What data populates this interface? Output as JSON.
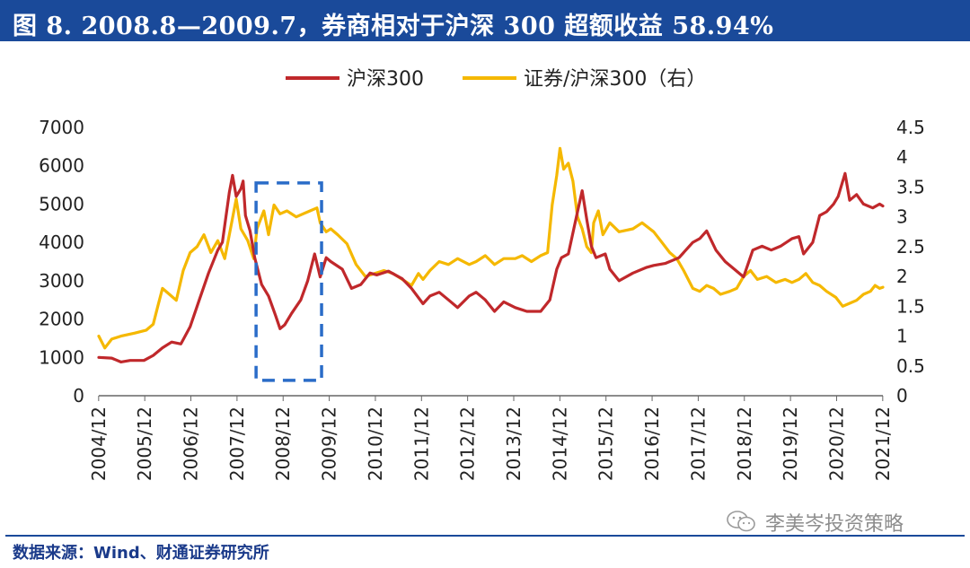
{
  "header": {
    "title": "图 8. 2008.8—2009.7，券商相对于沪深 300 超额收益 58.94%"
  },
  "footer": {
    "source": "数据来源：Wind、财通证券研究所",
    "watermark": "李美岑投资策略"
  },
  "chart_data": {
    "type": "line",
    "title": "图 8. 2008.8—2009.7，券商相对于沪深 300 超额收益 58.94%",
    "legend_position": "top",
    "x_labels": [
      "2004/12",
      "2005/12",
      "2006/12",
      "2007/12",
      "2008/12",
      "2009/12",
      "2010/12",
      "2011/12",
      "2012/12",
      "2013/12",
      "2014/12",
      "2015/12",
      "2016/12",
      "2017/12",
      "2018/12",
      "2019/12",
      "2020/12",
      "2021/12"
    ],
    "x_range": [
      2004.92,
      2021.92
    ],
    "y_left": {
      "min": 0,
      "max": 7000,
      "ticks": [
        "0",
        "1000",
        "2000",
        "3000",
        "4000",
        "5000",
        "6000",
        "7000"
      ]
    },
    "y_right": {
      "min": 0,
      "max": 4.5,
      "ticks": [
        "0",
        "0.5",
        "1",
        "1.5",
        "2",
        "2.5",
        "3",
        "3.5",
        "4",
        "4.5"
      ]
    },
    "highlight": {
      "label": "2008.8—2009.7",
      "x_start": 2008.33,
      "x_end": 2009.75,
      "y_low": 400,
      "y_high": 5550
    },
    "colors": {
      "hs300": "#c0282b",
      "ratio": "#f5b800",
      "highlight": "#2a6cc8",
      "title_bg": "#1a4a9a"
    },
    "series": [
      {
        "name": "沪深300",
        "axis": "left",
        "color": "#c0282b",
        "points": [
          [
            2004.92,
            1000
          ],
          [
            2005.2,
            980
          ],
          [
            2005.4,
            880
          ],
          [
            2005.6,
            920
          ],
          [
            2005.9,
            920
          ],
          [
            2006.1,
            1050
          ],
          [
            2006.3,
            1250
          ],
          [
            2006.5,
            1400
          ],
          [
            2006.7,
            1350
          ],
          [
            2006.9,
            1800
          ],
          [
            2007.1,
            2500
          ],
          [
            2007.3,
            3200
          ],
          [
            2007.5,
            3800
          ],
          [
            2007.6,
            4000
          ],
          [
            2007.75,
            5300
          ],
          [
            2007.82,
            5750
          ],
          [
            2007.9,
            5200
          ],
          [
            2008.0,
            5400
          ],
          [
            2008.05,
            5600
          ],
          [
            2008.1,
            4700
          ],
          [
            2008.2,
            4300
          ],
          [
            2008.3,
            3600
          ],
          [
            2008.45,
            2900
          ],
          [
            2008.6,
            2600
          ],
          [
            2008.75,
            2100
          ],
          [
            2008.85,
            1750
          ],
          [
            2008.95,
            1850
          ],
          [
            2009.1,
            2150
          ],
          [
            2009.3,
            2500
          ],
          [
            2009.45,
            3000
          ],
          [
            2009.6,
            3700
          ],
          [
            2009.72,
            3100
          ],
          [
            2009.85,
            3600
          ],
          [
            2009.95,
            3500
          ],
          [
            2010.2,
            3300
          ],
          [
            2010.4,
            2800
          ],
          [
            2010.6,
            2900
          ],
          [
            2010.8,
            3200
          ],
          [
            2010.95,
            3150
          ],
          [
            2011.2,
            3250
          ],
          [
            2011.5,
            3050
          ],
          [
            2011.7,
            2800
          ],
          [
            2011.95,
            2400
          ],
          [
            2012.1,
            2600
          ],
          [
            2012.3,
            2700
          ],
          [
            2012.5,
            2500
          ],
          [
            2012.7,
            2300
          ],
          [
            2012.95,
            2600
          ],
          [
            2013.1,
            2700
          ],
          [
            2013.3,
            2500
          ],
          [
            2013.5,
            2200
          ],
          [
            2013.7,
            2450
          ],
          [
            2013.95,
            2300
          ],
          [
            2014.2,
            2200
          ],
          [
            2014.5,
            2200
          ],
          [
            2014.7,
            2500
          ],
          [
            2014.85,
            3300
          ],
          [
            2014.95,
            3600
          ],
          [
            2015.1,
            3700
          ],
          [
            2015.3,
            4800
          ],
          [
            2015.4,
            5350
          ],
          [
            2015.5,
            4600
          ],
          [
            2015.6,
            3900
          ],
          [
            2015.7,
            3600
          ],
          [
            2015.9,
            3700
          ],
          [
            2016.0,
            3300
          ],
          [
            2016.2,
            3000
          ],
          [
            2016.5,
            3200
          ],
          [
            2016.8,
            3350
          ],
          [
            2016.95,
            3400
          ],
          [
            2017.2,
            3450
          ],
          [
            2017.5,
            3600
          ],
          [
            2017.8,
            4000
          ],
          [
            2017.95,
            4100
          ],
          [
            2018.1,
            4300
          ],
          [
            2018.3,
            3800
          ],
          [
            2018.5,
            3500
          ],
          [
            2018.7,
            3300
          ],
          [
            2018.9,
            3100
          ],
          [
            2019.1,
            3800
          ],
          [
            2019.3,
            3900
          ],
          [
            2019.5,
            3800
          ],
          [
            2019.7,
            3900
          ],
          [
            2019.95,
            4100
          ],
          [
            2020.1,
            4150
          ],
          [
            2020.2,
            3700
          ],
          [
            2020.4,
            4000
          ],
          [
            2020.55,
            4700
          ],
          [
            2020.7,
            4800
          ],
          [
            2020.85,
            5000
          ],
          [
            2020.95,
            5200
          ],
          [
            2021.1,
            5800
          ],
          [
            2021.2,
            5100
          ],
          [
            2021.35,
            5250
          ],
          [
            2021.5,
            5000
          ],
          [
            2021.7,
            4900
          ],
          [
            2021.85,
            5000
          ],
          [
            2021.92,
            4950
          ]
        ]
      },
      {
        "name": "证券/沪深300（右）",
        "axis": "right",
        "color": "#f5b800",
        "points": [
          [
            2004.92,
            1.0
          ],
          [
            2005.05,
            0.8
          ],
          [
            2005.2,
            0.95
          ],
          [
            2005.4,
            1.0
          ],
          [
            2005.7,
            1.05
          ],
          [
            2005.95,
            1.1
          ],
          [
            2006.1,
            1.2
          ],
          [
            2006.2,
            1.5
          ],
          [
            2006.3,
            1.8
          ],
          [
            2006.45,
            1.7
          ],
          [
            2006.6,
            1.6
          ],
          [
            2006.75,
            2.1
          ],
          [
            2006.9,
            2.4
          ],
          [
            2007.05,
            2.5
          ],
          [
            2007.2,
            2.7
          ],
          [
            2007.35,
            2.4
          ],
          [
            2007.5,
            2.6
          ],
          [
            2007.65,
            2.3
          ],
          [
            2007.8,
            2.9
          ],
          [
            2007.9,
            3.3
          ],
          [
            2008.0,
            2.8
          ],
          [
            2008.15,
            2.6
          ],
          [
            2008.28,
            2.3
          ],
          [
            2008.35,
            2.8
          ],
          [
            2008.5,
            3.1
          ],
          [
            2008.6,
            2.7
          ],
          [
            2008.72,
            3.2
          ],
          [
            2008.85,
            3.05
          ],
          [
            2009.0,
            3.1
          ],
          [
            2009.2,
            3.0
          ],
          [
            2009.35,
            3.05
          ],
          [
            2009.5,
            3.1
          ],
          [
            2009.65,
            3.15
          ],
          [
            2009.72,
            2.9
          ],
          [
            2009.85,
            2.75
          ],
          [
            2009.95,
            2.8
          ],
          [
            2010.1,
            2.7
          ],
          [
            2010.3,
            2.55
          ],
          [
            2010.5,
            2.2
          ],
          [
            2010.7,
            2.0
          ],
          [
            2010.9,
            2.05
          ],
          [
            2011.1,
            2.1
          ],
          [
            2011.3,
            2.05
          ],
          [
            2011.5,
            1.95
          ],
          [
            2011.7,
            1.85
          ],
          [
            2011.85,
            2.05
          ],
          [
            2011.95,
            1.95
          ],
          [
            2012.1,
            2.1
          ],
          [
            2012.3,
            2.25
          ],
          [
            2012.5,
            2.2
          ],
          [
            2012.7,
            2.3
          ],
          [
            2012.95,
            2.2
          ],
          [
            2013.1,
            2.25
          ],
          [
            2013.3,
            2.35
          ],
          [
            2013.5,
            2.2
          ],
          [
            2013.7,
            2.3
          ],
          [
            2013.95,
            2.3
          ],
          [
            2014.1,
            2.35
          ],
          [
            2014.3,
            2.25
          ],
          [
            2014.5,
            2.35
          ],
          [
            2014.65,
            2.4
          ],
          [
            2014.75,
            3.2
          ],
          [
            2014.85,
            3.7
          ],
          [
            2014.92,
            4.15
          ],
          [
            2015.0,
            3.8
          ],
          [
            2015.1,
            3.9
          ],
          [
            2015.2,
            3.6
          ],
          [
            2015.3,
            3.0
          ],
          [
            2015.4,
            2.8
          ],
          [
            2015.5,
            2.5
          ],
          [
            2015.6,
            2.4
          ],
          [
            2015.65,
            2.9
          ],
          [
            2015.75,
            3.1
          ],
          [
            2015.85,
            2.7
          ],
          [
            2016.0,
            2.9
          ],
          [
            2016.2,
            2.75
          ],
          [
            2016.5,
            2.8
          ],
          [
            2016.7,
            2.9
          ],
          [
            2016.95,
            2.75
          ],
          [
            2017.1,
            2.6
          ],
          [
            2017.3,
            2.4
          ],
          [
            2017.45,
            2.3
          ],
          [
            2017.6,
            2.1
          ],
          [
            2017.8,
            1.8
          ],
          [
            2017.95,
            1.75
          ],
          [
            2018.1,
            1.85
          ],
          [
            2018.25,
            1.8
          ],
          [
            2018.4,
            1.7
          ],
          [
            2018.6,
            1.75
          ],
          [
            2018.75,
            1.8
          ],
          [
            2018.9,
            2.0
          ],
          [
            2019.05,
            2.1
          ],
          [
            2019.2,
            1.95
          ],
          [
            2019.4,
            2.0
          ],
          [
            2019.6,
            1.9
          ],
          [
            2019.8,
            1.95
          ],
          [
            2019.95,
            1.9
          ],
          [
            2020.1,
            1.95
          ],
          [
            2020.25,
            2.05
          ],
          [
            2020.4,
            1.9
          ],
          [
            2020.55,
            1.85
          ],
          [
            2020.7,
            1.75
          ],
          [
            2020.9,
            1.65
          ],
          [
            2021.05,
            1.5
          ],
          [
            2021.2,
            1.55
          ],
          [
            2021.35,
            1.6
          ],
          [
            2021.5,
            1.7
          ],
          [
            2021.65,
            1.75
          ],
          [
            2021.75,
            1.85
          ],
          [
            2021.85,
            1.8
          ],
          [
            2021.92,
            1.82
          ]
        ]
      }
    ]
  }
}
